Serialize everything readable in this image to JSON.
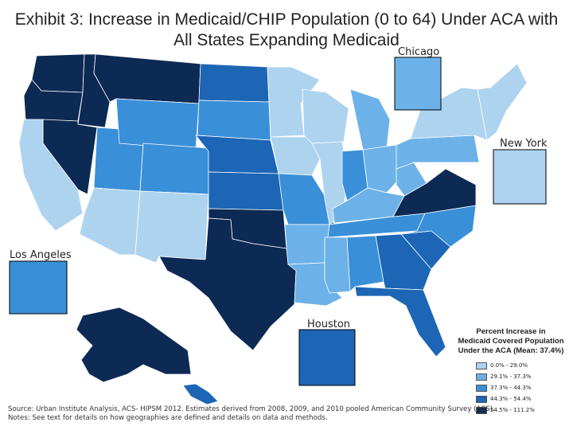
{
  "title_line1": "Exhibit 3: Increase in Medicaid/CHIP Population (0 to 64) Under ACA with",
  "title_line2": "All States Expanding Medicaid",
  "insets": {
    "chicago": "Chicago",
    "new_york": "New York",
    "los_angeles": "Los Angeles",
    "houston": "Houston"
  },
  "legend": {
    "title_line1": "Percent Increase in",
    "title_line2": "Medicaid Covered Population",
    "title_line3": "Under the ACA (Mean: 37.4%)",
    "items": [
      {
        "label": "0.0% - 29.0%",
        "color": "#aed3ef"
      },
      {
        "label": "29.1% - 37.3%",
        "color": "#6cb2e8"
      },
      {
        "label": "37.3% - 44.3%",
        "color": "#3a8fd9"
      },
      {
        "label": "44.3% - 54.4%",
        "color": "#1c66b5"
      },
      {
        "label": "54.5% - 111.2%",
        "color": "#0d2a55"
      }
    ]
  },
  "footer": {
    "source": "Source: Urban Institute Analysis, ACS- HIPSM 2012. Estimates derived from 2008, 2009, and 2010 pooled American Community Survey (ACS).",
    "notes": "Notes: See text for details on how geographies are defined and details on data and methods."
  },
  "map_regions": [
    {
      "name": "washington",
      "class": 4
    },
    {
      "name": "oregon",
      "class": 4
    },
    {
      "name": "idaho",
      "class": 4
    },
    {
      "name": "montana",
      "class": 4
    },
    {
      "name": "nevada",
      "class": 4
    },
    {
      "name": "california",
      "class": 0
    },
    {
      "name": "arizona",
      "class": 0
    },
    {
      "name": "utah",
      "class": 2
    },
    {
      "name": "wyoming",
      "class": 2
    },
    {
      "name": "colorado",
      "class": 2
    },
    {
      "name": "new-mexico",
      "class": 0
    },
    {
      "name": "north-dakota",
      "class": 3
    },
    {
      "name": "south-dakota",
      "class": 2
    },
    {
      "name": "nebraska",
      "class": 3
    },
    {
      "name": "kansas",
      "class": 3
    },
    {
      "name": "oklahoma",
      "class": 4
    },
    {
      "name": "texas",
      "class": 4
    },
    {
      "name": "minnesota",
      "class": 0
    },
    {
      "name": "iowa",
      "class": 0
    },
    {
      "name": "missouri",
      "class": 2
    },
    {
      "name": "arkansas",
      "class": 1
    },
    {
      "name": "louisiana",
      "class": 1
    },
    {
      "name": "wisconsin",
      "class": 0
    },
    {
      "name": "illinois",
      "class": 0
    },
    {
      "name": "michigan",
      "class": 1
    },
    {
      "name": "indiana",
      "class": 2
    },
    {
      "name": "ohio",
      "class": 1
    },
    {
      "name": "kentucky",
      "class": 1
    },
    {
      "name": "tennessee",
      "class": 2
    },
    {
      "name": "mississippi",
      "class": 1
    },
    {
      "name": "alabama",
      "class": 2
    },
    {
      "name": "georgia",
      "class": 3
    },
    {
      "name": "florida",
      "class": 3
    },
    {
      "name": "south-carolina",
      "class": 3
    },
    {
      "name": "north-carolina",
      "class": 2
    },
    {
      "name": "virginia",
      "class": 4
    },
    {
      "name": "west-virginia",
      "class": 1
    },
    {
      "name": "pennsylvania",
      "class": 1
    },
    {
      "name": "new-york-state",
      "class": 0
    },
    {
      "name": "new-england",
      "class": 0
    },
    {
      "name": "alaska",
      "class": 4
    },
    {
      "name": "hawaii",
      "class": 3
    }
  ]
}
